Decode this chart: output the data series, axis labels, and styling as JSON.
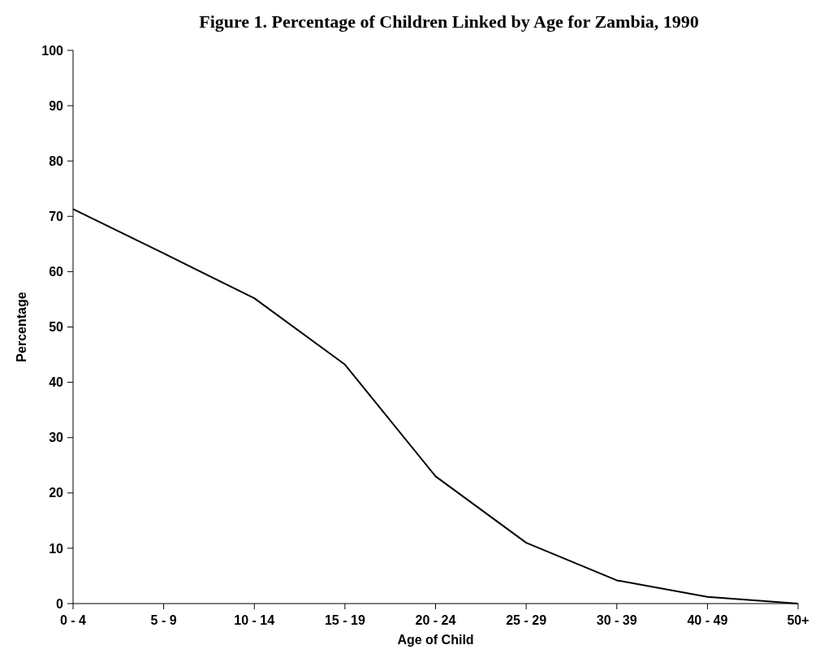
{
  "chart_data": {
    "type": "line",
    "title": "Figure 1. Percentage of Children Linked by Age for Zambia, 1990",
    "xlabel": "Age of Child",
    "ylabel": "Percentage",
    "categories": [
      "0 - 4",
      "5 - 9",
      "10 - 14",
      "15 - 19",
      "20 - 24",
      "25 - 29",
      "30 - 39",
      "40 - 49",
      "50+"
    ],
    "series": [
      {
        "color": "#000000",
        "values": [
          71.3,
          63.3,
          55.2,
          43.2,
          23.0,
          11.0,
          4.2,
          1.2,
          0
        ]
      }
    ],
    "ylim": [
      0,
      100
    ],
    "yticks": [
      0,
      10,
      20,
      30,
      40,
      50,
      60,
      70,
      80,
      90,
      100
    ],
    "grid": false,
    "marker": "none",
    "line_style": "solid"
  }
}
